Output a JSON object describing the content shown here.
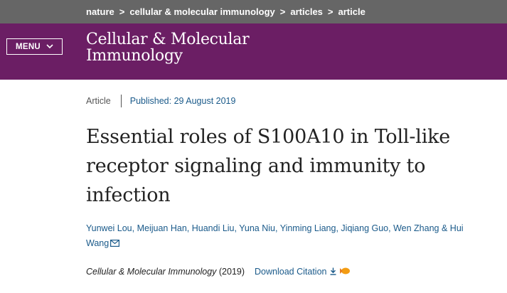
{
  "breadcrumbs": [
    {
      "label": "nature"
    },
    {
      "label": "cellular & molecular immunology"
    },
    {
      "label": "articles"
    },
    {
      "label": "article"
    }
  ],
  "header": {
    "menu_label": "MENU",
    "journal_title_line1": "Cellular & Molecular",
    "journal_title_line2": "Immunology"
  },
  "article": {
    "type": "Article",
    "published": "Published: 29 August 2019",
    "title": "Essential roles of S100A10 in Toll-like receptor signaling and immunity to infection",
    "authors": [
      "Yunwei Lou",
      "Meijuan Han",
      "Huandi Liu",
      "Yuna Niu",
      "Yinming Liang",
      "Jiqiang Guo",
      "Wen Zhang",
      "Hui Wang"
    ],
    "author_separators": [
      ", ",
      ", ",
      ", ",
      ", ",
      ", ",
      ", ",
      " & "
    ],
    "journal_name": "Cellular & Molecular Immunology",
    "year": "(2019)",
    "download_citation": "Download Citation"
  },
  "colors": {
    "breadcrumb_bg": "#666666",
    "header_bg": "#6b1e64",
    "link": "#1a5a8a",
    "citation_icon": "#f39c12"
  },
  "icons": {
    "chevron": "chevron-right-icon",
    "menu_chevron": "chevron-down-icon",
    "mail": "mail-icon",
    "download": "download-icon",
    "external": "citation-manager-icon"
  }
}
